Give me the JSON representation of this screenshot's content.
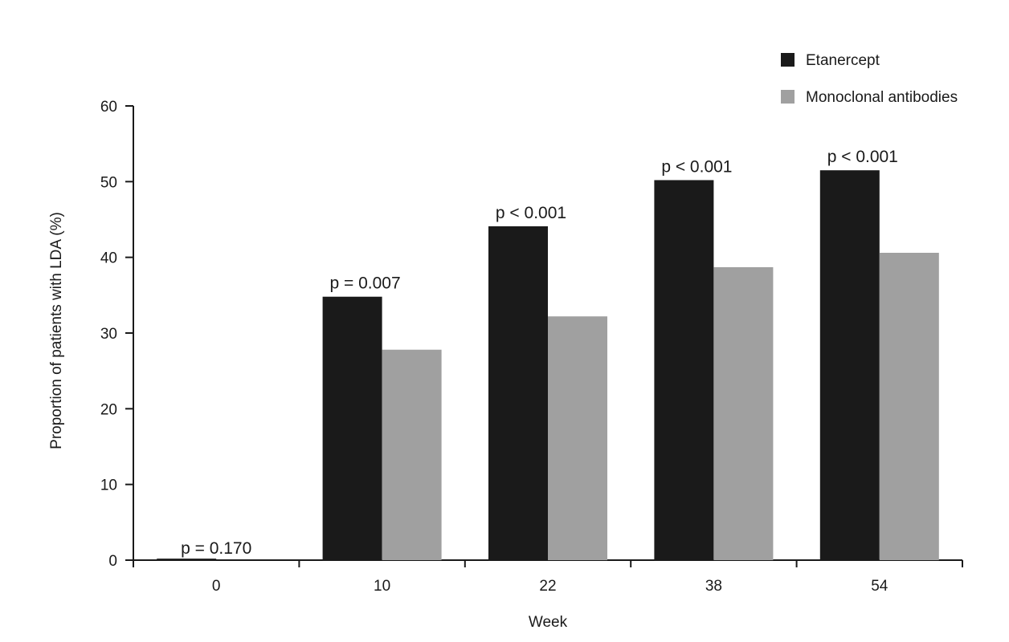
{
  "chart_data": {
    "type": "bar",
    "title": "",
    "xlabel": "Week",
    "ylabel": "Proportion of patients with LDA (%)",
    "categories": [
      "0",
      "10",
      "22",
      "38",
      "54"
    ],
    "series": [
      {
        "name": "Etanercept",
        "color": "#1a1a1a",
        "values": [
          0.2,
          34.8,
          44.1,
          50.2,
          51.5
        ]
      },
      {
        "name": "Monoclonal antibodies",
        "color": "#a0a0a0",
        "values": [
          0,
          27.8,
          32.2,
          38.7,
          40.6
        ]
      }
    ],
    "annotations": [
      "p = 0.170",
      "p = 0.007",
      "p < 0.001",
      "p < 0.001",
      "p < 0.001"
    ],
    "yticks": [
      0,
      10,
      20,
      30,
      40,
      50,
      60
    ],
    "ylim": [
      0,
      60
    ],
    "grid": false,
    "legend_position": "top-right"
  }
}
